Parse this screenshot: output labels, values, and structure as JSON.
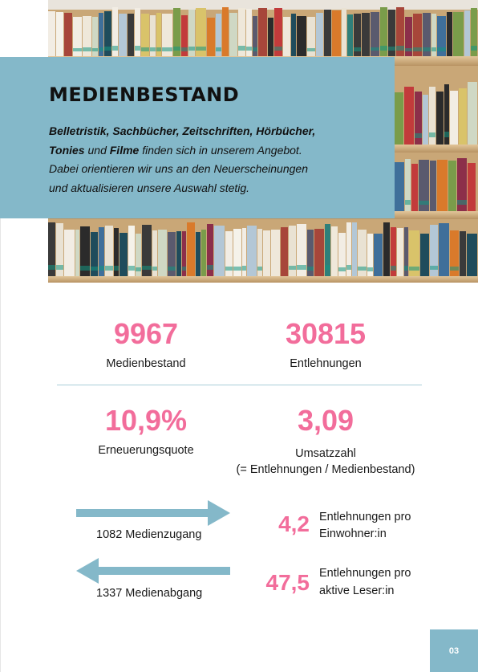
{
  "header": {
    "title": "MEDIENBESTAND",
    "intro": {
      "line1_bold": "Belletristik, Sachbücher, Zeitschriften, Hörbücher,",
      "line2_bold_a": "Tonies",
      "line2_mid": " und ",
      "line2_bold_b": "Filme",
      "line2_rest": " finden sich in unserem Angebot.",
      "line3": "Dabei orientieren wir uns an den Neuerscheinungen",
      "line4": "und aktualisieren unsere Auswahl stetig."
    }
  },
  "stats": {
    "medienbestand": {
      "value": "9967",
      "label": "Medienbestand"
    },
    "entlehnungen": {
      "value": "30815",
      "label": "Entlehnungen"
    },
    "erneuerungsquote": {
      "value": "10,9%",
      "label": "Erneuerungsquote"
    },
    "umsatzzahl": {
      "value": "3,09",
      "label": "Umsatzzahl",
      "note": "(= Entlehnungen / Medienbestand)"
    }
  },
  "flows": {
    "zugang": "1082 Medienzugang",
    "abgang": "1337 Medienabgang"
  },
  "ratios": {
    "einwohner": {
      "value": "4,2",
      "label_line1": "Entlehnungen pro",
      "label_line2": "Einwohner:in"
    },
    "leser": {
      "value": "47,5",
      "label_line1": "Entlehnungen pro",
      "label_line2": "aktive Leser:in"
    }
  },
  "footer": {
    "page_number": "03"
  },
  "colors": {
    "accent_pink": "#f26d9b",
    "accent_teal": "#84b8c9"
  }
}
